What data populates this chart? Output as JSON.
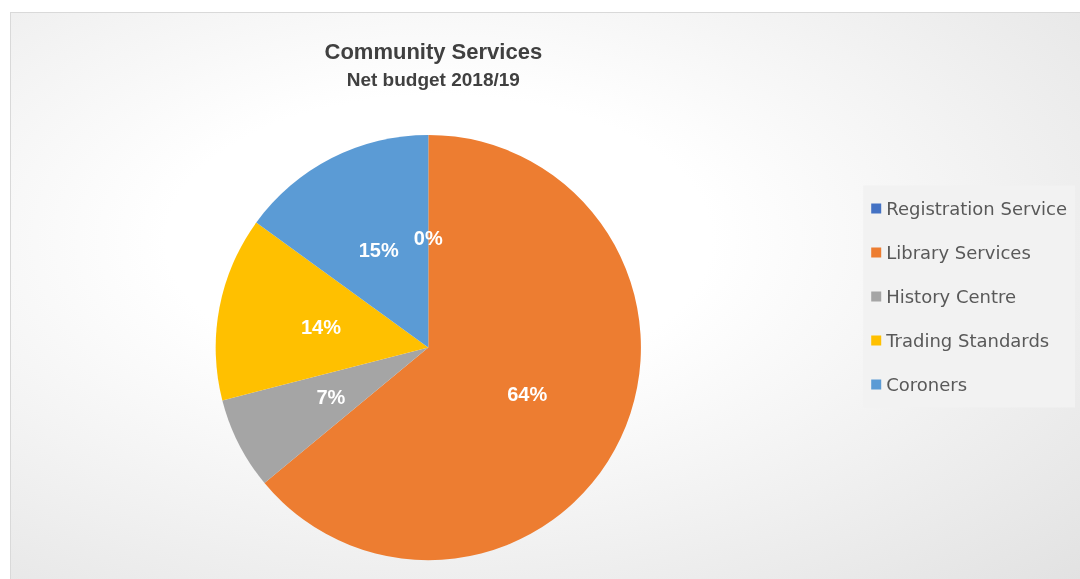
{
  "chart_data": {
    "type": "pie",
    "title": "Community Services",
    "subtitle": "Net budget 2018/19",
    "categories": [
      "Registration Service",
      "Library Services",
      "History Centre",
      "Trading Standards",
      "Coroners"
    ],
    "values": [
      0,
      64,
      7,
      14,
      15
    ],
    "colors": [
      "#4472c4",
      "#ed7d31",
      "#a5a5a5",
      "#ffc000",
      "#5b9bd5"
    ],
    "value_labels": [
      "0%",
      "64%",
      "7%",
      "14%",
      "15%"
    ],
    "legend": "right"
  }
}
